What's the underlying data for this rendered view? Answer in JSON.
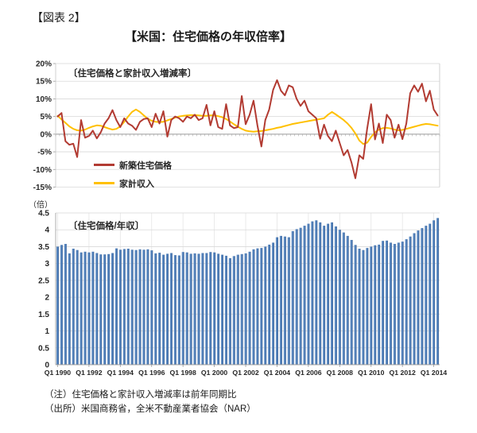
{
  "header": {
    "figure_label": "【図表 2】",
    "title": "【米国：住宅価格の年収倍率】"
  },
  "notes": {
    "note": "（注）住宅価格と家計収入増減率は前年同期比",
    "source": "（出所）米国商務省，全米不動産業者協会（NAR）"
  },
  "chart_data": [
    {
      "type": "line",
      "caption": "〔住宅価格と家計収入増減率〕",
      "x_start": "1990Q1",
      "x_end": "2014Q2",
      "frequency": "quarterly",
      "ylim": [
        -15,
        20
      ],
      "y_tick_step": 5,
      "y_tick_labels": [
        "20%",
        "15%",
        "10%",
        "5%",
        "0%",
        "-5%",
        "-10%",
        "-15%"
      ],
      "grid": "horizontal",
      "legend_position": "inside-lower-left",
      "series": [
        {
          "name": "新築住宅価格",
          "color": "#b23b32",
          "values": [
            5.0,
            6.0,
            -2.0,
            -3.0,
            -2.7,
            -6.5,
            4.0,
            -1.0,
            -0.5,
            1.0,
            -1.2,
            0.5,
            3.0,
            4.5,
            6.8,
            4.0,
            2.0,
            4.5,
            3.0,
            2.4,
            1.2,
            3.5,
            4.3,
            4.5,
            2.0,
            5.8,
            3.0,
            6.5,
            -0.7,
            4.0,
            5.0,
            4.5,
            3.5,
            5.0,
            4.5,
            5.5,
            4.0,
            4.5,
            8.3,
            2.5,
            6.5,
            2.0,
            1.5,
            8.5,
            2.5,
            1.7,
            2.0,
            10.8,
            2.8,
            5.5,
            9.5,
            2.5,
            -3.5,
            4.0,
            7.0,
            12.5,
            15.3,
            12.3,
            11.0,
            13.8,
            13.3,
            10.0,
            8.0,
            9.5,
            6.5,
            5.5,
            4.5,
            -1.3,
            2.7,
            -0.5,
            -2.0,
            1.0,
            -2.5,
            -6.0,
            -4.5,
            -8.0,
            -12.5,
            -6.0,
            -7.0,
            1.5,
            8.5,
            -1.5,
            3.0,
            -2.5,
            5.5,
            4.0,
            -1.0,
            2.7,
            -1.4,
            3.0,
            11.6,
            13.8,
            12.0,
            14.3,
            9.3,
            12.3,
            7.0,
            5.3
          ]
        },
        {
          "name": "家計収入",
          "color": "#ffc000",
          "values": [
            5.2,
            4.2,
            3.2,
            2.2,
            1.5,
            1.1,
            1.0,
            1.3,
            1.8,
            2.2,
            2.5,
            2.4,
            2.0,
            1.6,
            1.3,
            1.5,
            2.2,
            3.5,
            5.0,
            6.3,
            7.0,
            6.3,
            5.3,
            4.4,
            3.8,
            3.5,
            3.4,
            3.5,
            3.9,
            4.3,
            4.7,
            5.0,
            5.2,
            5.3,
            5.4,
            5.4,
            5.3,
            5.2,
            5.2,
            5.3,
            5.3,
            5.1,
            4.8,
            4.3,
            3.6,
            2.8,
            2.1,
            1.5,
            1.0,
            0.8,
            0.7,
            0.8,
            0.9,
            1.1,
            1.3,
            1.5,
            1.8,
            2.0,
            2.3,
            2.6,
            2.9,
            3.1,
            3.3,
            3.5,
            3.7,
            3.9,
            4.1,
            4.3,
            4.5,
            5.5,
            6.3,
            5.6,
            4.8,
            4.0,
            3.0,
            1.8,
            0.2,
            -1.8,
            -2.8,
            -2.4,
            -0.8,
            0.5,
            1.3,
            1.7,
            1.8,
            1.6,
            1.3,
            1.1,
            1.2,
            1.5,
            1.8,
            2.1,
            2.4,
            2.7,
            2.9,
            2.8,
            2.6,
            2.4
          ]
        }
      ]
    },
    {
      "type": "bar",
      "caption": "〔住宅価格/年収〕",
      "unit_label": "（倍）",
      "x_start": "1990Q1",
      "x_end": "2014Q2",
      "frequency": "quarterly",
      "ylim": [
        0,
        4.5
      ],
      "y_tick_step": 0.5,
      "y_tick_labels": [
        "4.5",
        "4",
        "3.5",
        "3",
        "2.5",
        "2",
        "1.5",
        "1",
        "0.5",
        "0"
      ],
      "x_tick_labels": [
        "Q1 1990",
        "Q1 1992",
        "Q1 1994",
        "Q1 1996",
        "Q1 1998",
        "Q1 2000",
        "Q1 2002",
        "Q1 2004",
        "Q1 2006",
        "Q1 2008",
        "Q1 2010",
        "Q1 2012",
        "Q1 2014"
      ],
      "x_tick_every": 8,
      "color": "#4f81bd",
      "values": [
        3.5,
        3.55,
        3.58,
        3.3,
        3.44,
        3.4,
        3.33,
        3.35,
        3.33,
        3.35,
        3.31,
        3.27,
        3.27,
        3.28,
        3.31,
        3.45,
        3.41,
        3.43,
        3.44,
        3.41,
        3.4,
        3.42,
        3.41,
        3.42,
        3.39,
        3.3,
        3.32,
        3.26,
        3.29,
        3.31,
        3.25,
        3.24,
        3.34,
        3.33,
        3.29,
        3.3,
        3.29,
        3.31,
        3.31,
        3.34,
        3.33,
        3.29,
        3.26,
        3.23,
        3.16,
        3.22,
        3.26,
        3.28,
        3.3,
        3.35,
        3.42,
        3.45,
        3.46,
        3.5,
        3.56,
        3.62,
        3.78,
        3.82,
        3.8,
        3.78,
        3.96,
        4.02,
        4.06,
        4.12,
        4.18,
        4.25,
        4.28,
        4.22,
        4.12,
        4.18,
        4.22,
        4.1,
        4.0,
        3.92,
        3.82,
        3.7,
        3.55,
        3.44,
        3.4,
        3.46,
        3.5,
        3.54,
        3.56,
        3.67,
        3.68,
        3.62,
        3.58,
        3.62,
        3.65,
        3.72,
        3.8,
        3.9,
        3.98,
        4.05,
        4.12,
        4.18,
        4.28,
        4.35
      ]
    }
  ]
}
